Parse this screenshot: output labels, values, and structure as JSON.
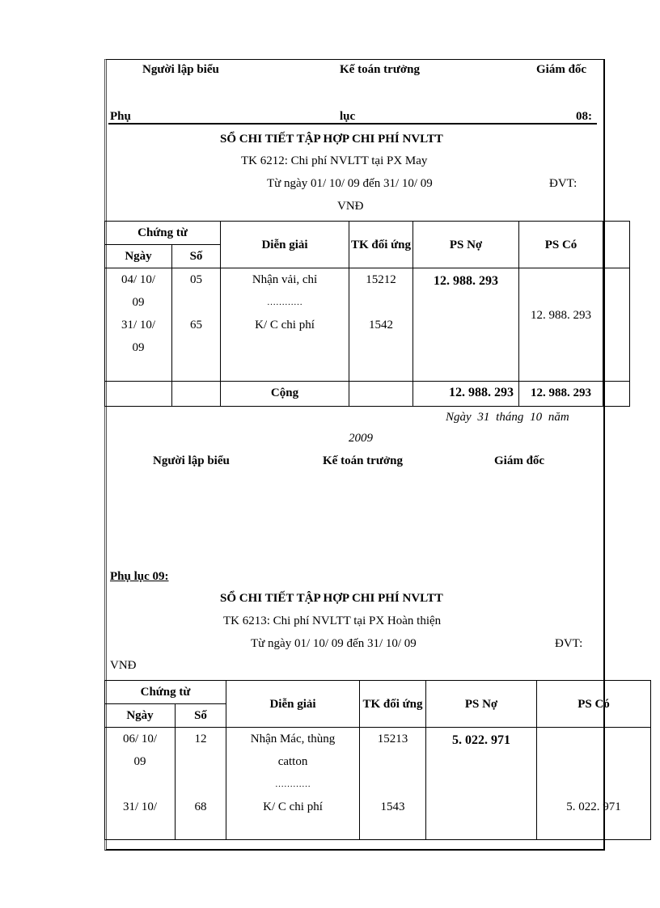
{
  "top_signatures": {
    "preparer": "Người lập biểu",
    "chief_accountant": "Kế toán trưởng",
    "director": "Giám đốc"
  },
  "appendix8": {
    "label_parts": [
      "Phụ",
      "lục",
      "08:"
    ],
    "title": "SỔ CHI TIẾT  TẬP  HỢP CHI PHÍ NVLTT",
    "account": "TK  6212: Chi phí NVLTT  tại PX May",
    "period": "Từ ngày  01/ 10/ 09 đến 31/ 10/ 09",
    "unit_label": "ĐVT:",
    "unit": "VNĐ",
    "headers": {
      "voucher": "Chứng từ",
      "date": "Ngày",
      "no": "Số",
      "desc": "Diễn giải",
      "acct": "TK  đối ứng",
      "debit": "PS Nợ",
      "credit": "PS Có"
    },
    "rows": [
      {
        "date": "04/ 10/ 09",
        "no": "05",
        "desc": "Nhận vải,  chỉ",
        "acct": "15212",
        "debit": "12. 988. 293",
        "credit": ""
      },
      {
        "date": "",
        "no": "",
        "desc": "…………",
        "acct": "",
        "debit": "",
        "credit": ""
      },
      {
        "date": "31/ 10/ 09",
        "no": "65",
        "desc": "K/ C chi phí",
        "acct": "1542",
        "debit": "",
        "credit": "12. 988. 293"
      }
    ],
    "total": {
      "label": "Cộng",
      "debit": "12. 988. 293",
      "credit": "12. 988. 293"
    },
    "date_line": "Ngày  31  tháng  10  năm",
    "year": "2009",
    "signatures": {
      "preparer": "Người lập biểu",
      "chief_accountant": "Kế toán trưởng",
      "director": "Giám đốc"
    }
  },
  "appendix9": {
    "label": "Phụ lục 09:",
    "title": "SỔ CHI TIẾT  TẬP  HỢP CHI PHÍ NVLTT",
    "account": "TK  6213: Chi phí  NVLTT  tại PX Hoàn thiện",
    "period": "Từ ngày  01/ 10/ 09 đến 31/ 10/ 09",
    "unit_label": "ĐVT:",
    "unit": "VNĐ",
    "headers": {
      "voucher": "Chứng từ",
      "date": "Ngày",
      "no": "Số",
      "desc": "Diễn giải",
      "acct": "TK  đối ứng",
      "debit": "PS Nợ",
      "credit": "PS Có"
    },
    "rows": [
      {
        "date": "06/ 10/ 09",
        "no": "12",
        "desc": "Nhận  Mác, thùng catton",
        "acct": "15213",
        "debit": "5. 022. 971",
        "credit": ""
      },
      {
        "date": "",
        "no": "",
        "desc": "…………",
        "acct": "",
        "debit": "",
        "credit": ""
      },
      {
        "date": "31/ 10/",
        "no": "68",
        "desc": "K/ C chi phí",
        "acct": "1543",
        "debit": "",
        "credit": "5. 022. 971"
      }
    ]
  }
}
